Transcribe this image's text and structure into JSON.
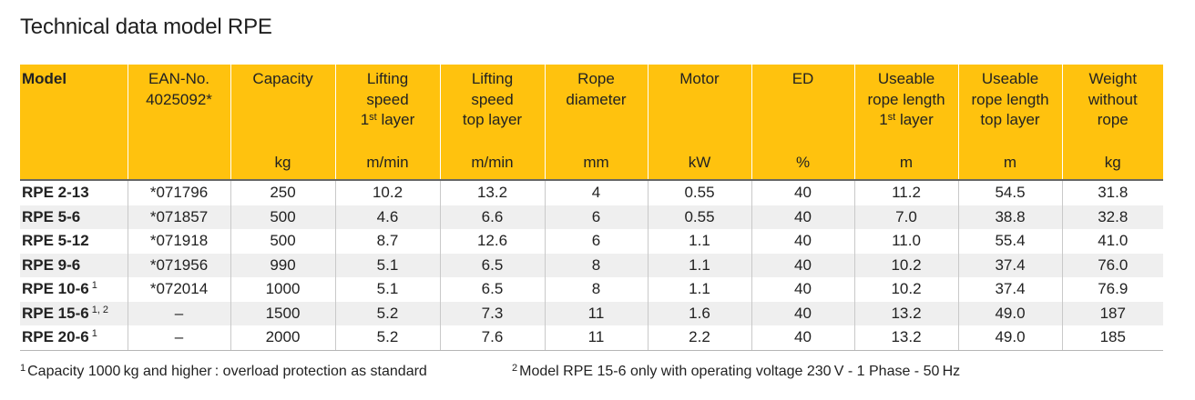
{
  "title": "Technical data model RPE",
  "colors": {
    "header_bg": "#ffc20e",
    "shaded_row": "#efefef"
  },
  "columns": [
    {
      "lines": [
        "Model"
      ],
      "unit": ""
    },
    {
      "lines": [
        "EAN-No.",
        "4025092*"
      ],
      "unit": ""
    },
    {
      "lines": [
        "Capacity"
      ],
      "unit": "kg"
    },
    {
      "lines": [
        "Lifting",
        "speed"
      ],
      "ord_line": {
        "num": "1",
        "sup": "st",
        "rest": " layer"
      },
      "unit": "m/min"
    },
    {
      "lines": [
        "Lifting",
        "speed",
        "top layer"
      ],
      "unit": "m/min"
    },
    {
      "lines": [
        "Rope",
        "diameter"
      ],
      "unit": "mm"
    },
    {
      "lines": [
        "Motor"
      ],
      "unit": "kW"
    },
    {
      "lines": [
        "ED"
      ],
      "unit": "%"
    },
    {
      "lines": [
        "Useable",
        "rope length"
      ],
      "ord_line": {
        "num": "1",
        "sup": "st",
        "rest": " layer"
      },
      "unit": "m"
    },
    {
      "lines": [
        "Useable",
        "rope length",
        "top layer"
      ],
      "unit": "m"
    },
    {
      "lines": [
        "Weight",
        "without",
        "rope"
      ],
      "unit": "kg"
    }
  ],
  "rows": [
    {
      "model": "RPE 2-13",
      "sup": "",
      "cells": [
        "*071796",
        "250",
        "10.2",
        "13.2",
        "4",
        "0.55",
        "40",
        "11.2",
        "54.5",
        "31.8"
      ]
    },
    {
      "model": "RPE 5-6",
      "sup": "",
      "cells": [
        "*071857",
        "500",
        "4.6",
        "6.6",
        "6",
        "0.55",
        "40",
        "7.0",
        "38.8",
        "32.8"
      ]
    },
    {
      "model": "RPE 5-12",
      "sup": "",
      "cells": [
        "*071918",
        "500",
        "8.7",
        "12.6",
        "6",
        "1.1",
        "40",
        "11.0",
        "55.4",
        "41.0"
      ]
    },
    {
      "model": "RPE 9-6",
      "sup": "",
      "cells": [
        "*071956",
        "990",
        "5.1",
        "6.5",
        "8",
        "1.1",
        "40",
        "10.2",
        "37.4",
        "76.0"
      ]
    },
    {
      "model": "RPE 10-6",
      "sup": "1",
      "cells": [
        "*072014",
        "1000",
        "5.1",
        "6.5",
        "8",
        "1.1",
        "40",
        "10.2",
        "37.4",
        "76.9"
      ]
    },
    {
      "model": "RPE 15-6",
      "sup": "1, 2",
      "cells": [
        "–",
        "1500",
        "5.2",
        "7.3",
        "11",
        "1.6",
        "40",
        "13.2",
        "49.0",
        "187"
      ]
    },
    {
      "model": "RPE 20-6",
      "sup": "1",
      "cells": [
        "–",
        "2000",
        "5.2",
        "7.6",
        "11",
        "2.2",
        "40",
        "13.2",
        "49.0",
        "185"
      ]
    }
  ],
  "footnotes": [
    {
      "mark": "1",
      "text": "Capacity 1000 kg and higher : overload protection as standard"
    },
    {
      "mark": "2",
      "text": "Model RPE 15-6 only with operating voltage 230 V - 1 Phase - 50 Hz"
    }
  ]
}
